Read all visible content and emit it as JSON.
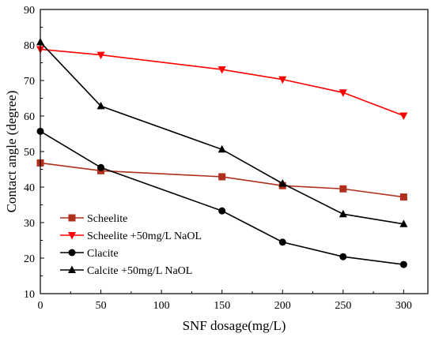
{
  "chart_data": {
    "type": "line",
    "title": "",
    "xlabel": "SNF dosage(mg/L)",
    "ylabel": "Contact angle (degree)",
    "xlim": [
      0,
      320
    ],
    "ylim": [
      10,
      90
    ],
    "xticks": [
      0,
      50,
      100,
      150,
      200,
      250,
      300
    ],
    "yticks": [
      10,
      20,
      30,
      40,
      50,
      60,
      70,
      80,
      90
    ],
    "grid": false,
    "legend_position": "lower-left",
    "series": [
      {
        "name": "Scheelite",
        "color": "#b0301c",
        "marker": "square",
        "x": [
          0,
          50,
          150,
          200,
          250,
          300
        ],
        "y": [
          46.8,
          44.6,
          42.9,
          40.4,
          39.5,
          37.2
        ]
      },
      {
        "name": "Scheelite +50mg/L NaOL",
        "color": "#ff0000",
        "marker": "triangle-down",
        "x": [
          0,
          50,
          150,
          200,
          250,
          300
        ],
        "y": [
          78.8,
          77.2,
          73.1,
          70.3,
          66.6,
          60.1
        ]
      },
      {
        "name": "Clacite",
        "color": "#000000",
        "marker": "circle",
        "x": [
          0,
          50,
          150,
          200,
          250,
          300
        ],
        "y": [
          55.7,
          45.5,
          33.3,
          24.5,
          20.4,
          18.2
        ]
      },
      {
        "name": "Calcite +50mg/L NaOL",
        "color": "#000000",
        "marker": "triangle-up",
        "x": [
          0,
          50,
          150,
          200,
          250,
          300
        ],
        "y": [
          80.8,
          62.8,
          50.6,
          41.0,
          32.4,
          29.6
        ]
      }
    ]
  }
}
